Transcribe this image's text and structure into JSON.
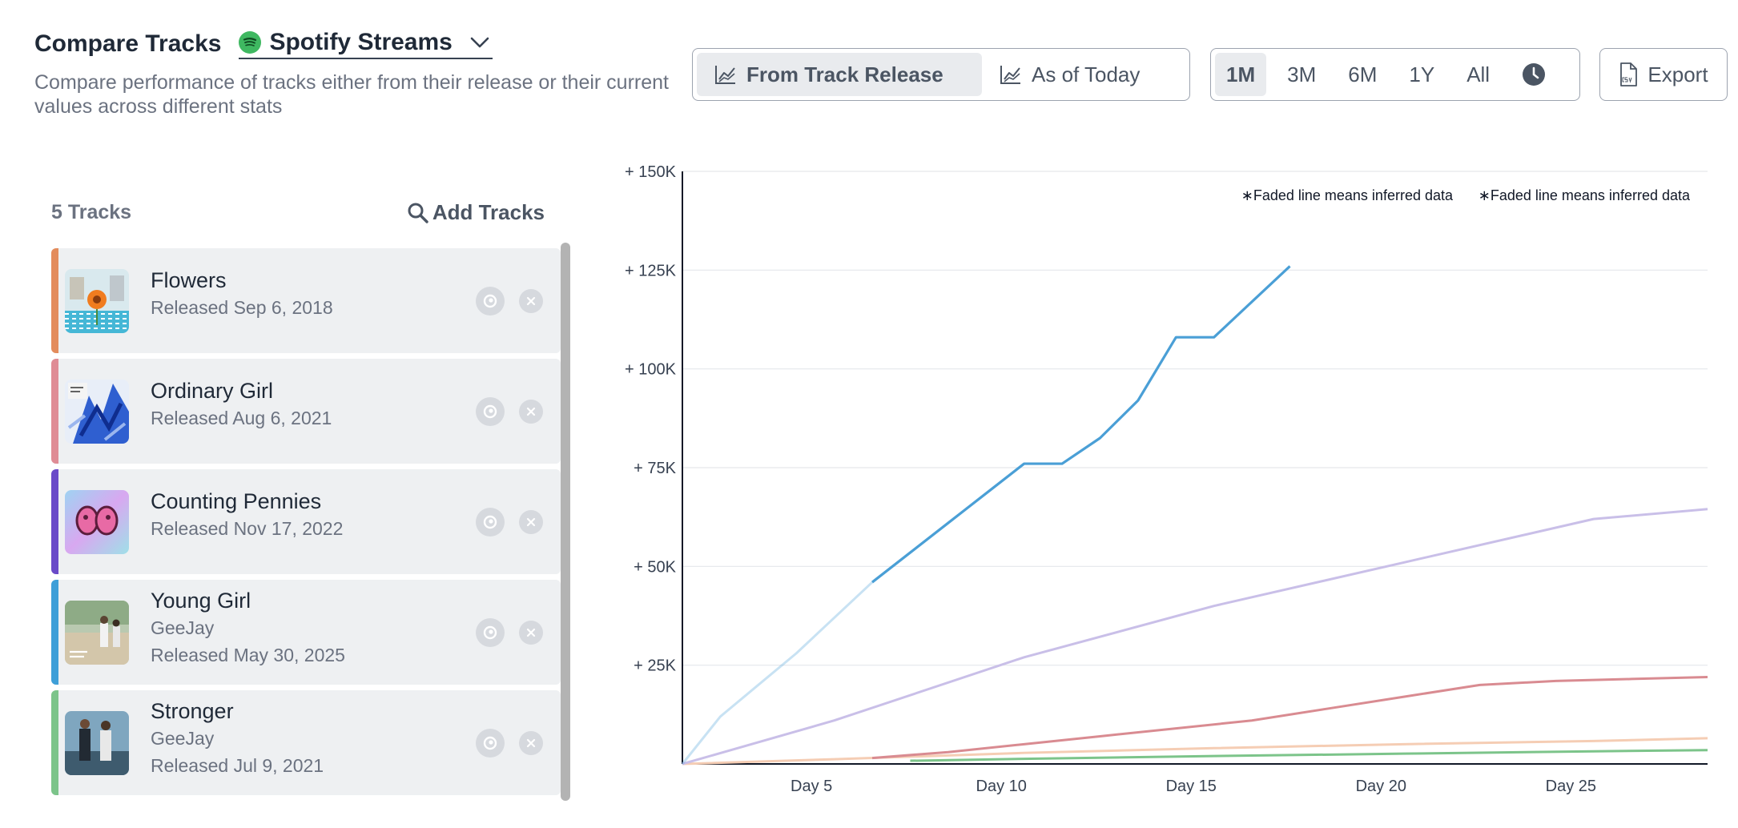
{
  "header": {
    "title": "Compare Tracks",
    "stat_label": "Spotify Streams",
    "subtitle": "Compare performance of tracks either from their release or their current values across different stats"
  },
  "mode": {
    "options": [
      "From Track Release",
      "As of Today"
    ],
    "selected": "From Track Release"
  },
  "range": {
    "options": [
      "1M",
      "3M",
      "6M",
      "1Y",
      "All"
    ],
    "selected": "1M"
  },
  "export_label": "Export",
  "tracks_panel": {
    "count_label": "5 Tracks",
    "add_label": "Add Tracks",
    "items": [
      {
        "name": "Flowers",
        "artist": "",
        "released": "Released Sep 6, 2018",
        "color": "#e38c5c"
      },
      {
        "name": "Ordinary Girl",
        "artist": "",
        "released": "Released Aug 6, 2021",
        "color": "#df8c95"
      },
      {
        "name": "Counting Pennies",
        "artist": "",
        "released": "Released Nov 17, 2022",
        "color": "#6a4ac8"
      },
      {
        "name": "Young Girl",
        "artist": "GeeJay",
        "released": "Released May 30, 2025",
        "color": "#3e9fd8"
      },
      {
        "name": "Stronger",
        "artist": "GeeJay",
        "released": "Released Jul 9, 2021",
        "color": "#7cc48a"
      }
    ]
  },
  "chart_data": {
    "type": "line",
    "ytick_labels": [
      "+ 25K",
      "+ 50K",
      "+ 75K",
      "+ 100K",
      "+ 125K",
      "+ 150K"
    ],
    "ytick_values": [
      25000,
      50000,
      75000,
      100000,
      125000,
      150000
    ],
    "xtick_labels": [
      "Day 5",
      "Day 10",
      "Day 15",
      "Day 20",
      "Day 25"
    ],
    "xtick_values": [
      5,
      10,
      15,
      20,
      25
    ],
    "xlim": [
      1.6,
      28.6
    ],
    "ylim": [
      0,
      150000
    ],
    "annotation": "∗Faded line means inferred data",
    "annotation_repeat": "∗Faded line means inferred data",
    "series": [
      {
        "track": "Young Girl",
        "color": "#4a9fd6",
        "inferred_until": 6.6,
        "x": [
          1.6,
          2.6,
          3.6,
          4.6,
          5.6,
          6.6,
          7.6,
          8.6,
          9.6,
          10.6,
          11.6,
          12.6,
          13.6,
          14.6,
          15.6,
          16.6,
          17.6
        ],
        "y": [
          0,
          12000,
          20000,
          28000,
          37000,
          46000,
          53500,
          61000,
          68500,
          76000,
          76000,
          82500,
          92000,
          108000,
          108000,
          117000,
          126000
        ]
      },
      {
        "track": "Counting Pennies",
        "color": "#c9bfe8",
        "inferred_until": null,
        "x": [
          1.6,
          5.6,
          10.6,
          15.6,
          20.6,
          25.6,
          28.6
        ],
        "y": [
          0,
          11000,
          27000,
          40000,
          51000,
          62000,
          64500
        ]
      },
      {
        "track": "Ordinary Girl",
        "color": "#d98b91",
        "inferred_until": null,
        "x": [
          6.6,
          8.6,
          10.6,
          12.6,
          14.6,
          16.6,
          18.6,
          20.6,
          22.6,
          24.6,
          26.6,
          28.6
        ],
        "y": [
          1500,
          3000,
          5000,
          7000,
          9000,
          11000,
          14000,
          17000,
          20000,
          21000,
          21500,
          22000
        ]
      },
      {
        "track": "Flowers",
        "color": "#f5cdb4",
        "inferred_until": null,
        "x": [
          1.6,
          5.6,
          10.6,
          15.6,
          20.6,
          25.6,
          28.6
        ],
        "y": [
          0,
          1200,
          2800,
          4000,
          5000,
          5800,
          6500
        ]
      },
      {
        "track": "Stronger",
        "color": "#7cc48a",
        "inferred_until": null,
        "x": [
          7.6,
          10.6,
          15.6,
          20.6,
          25.6,
          28.6
        ],
        "y": [
          800,
          1300,
          2000,
          2600,
          3200,
          3500
        ]
      }
    ]
  }
}
